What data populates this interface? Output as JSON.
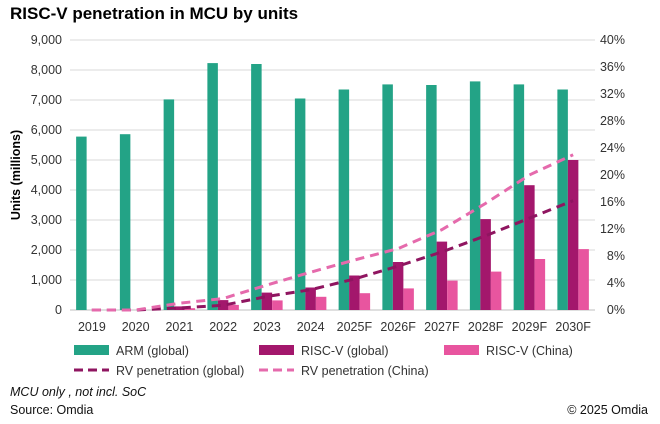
{
  "title": "RISC-V penetration in MCU by units",
  "note": "MCU only , not incl. SoC",
  "source": "Source: Omdia",
  "copyright": "© 2025 Omdia",
  "colors": {
    "arm": "#23a386",
    "riscv_global": "#a3176c",
    "riscv_china": "#e8559f",
    "rv_pen_global": "#8f1560",
    "rv_pen_china": "#e56aac",
    "grid": "#d9d9d9"
  },
  "chart_data": {
    "type": "bar",
    "title": "RISC-V penetration in MCU by units",
    "ylabel": "Units (millions)",
    "categories": [
      "2019",
      "2020",
      "2021",
      "2022",
      "2023",
      "2024",
      "2025F",
      "2026F",
      "2027F",
      "2028F",
      "2029F",
      "2030F"
    ],
    "ylim": [
      0,
      9000
    ],
    "yticks": [
      "0",
      "1,000",
      "2,000",
      "3,000",
      "4,000",
      "5,000",
      "6,000",
      "7,000",
      "8,000",
      "9,000"
    ],
    "y2lim": [
      0,
      40
    ],
    "y2ticks": [
      "0%",
      "4%",
      "8%",
      "12%",
      "16%",
      "20%",
      "24%",
      "28%",
      "32%",
      "36%",
      "40%"
    ],
    "grid": true,
    "legend_position": "bottom",
    "series": [
      {
        "name": "ARM (global)",
        "kind": "bar",
        "axis": "left",
        "values": [
          5780,
          5860,
          7020,
          8230,
          8200,
          7050,
          7350,
          7520,
          7500,
          7620,
          7520,
          7350
        ]
      },
      {
        "name": "RISC-V (global)",
        "kind": "bar",
        "axis": "left",
        "values": [
          0,
          0,
          120,
          330,
          580,
          750,
          1150,
          1600,
          2280,
          3030,
          4160,
          5000
        ]
      },
      {
        "name": "RISC-V (China)",
        "kind": "bar",
        "axis": "left",
        "values": [
          0,
          0,
          60,
          170,
          320,
          440,
          560,
          720,
          980,
          1280,
          1700,
          2030
        ]
      },
      {
        "name": "RV penetration (global)",
        "kind": "line",
        "axis": "right",
        "values": [
          0,
          0,
          0.3,
          0.7,
          2.0,
          3.0,
          4.6,
          6.5,
          8.6,
          11.0,
          13.6,
          16.2
        ]
      },
      {
        "name": "RV penetration (China)",
        "kind": "line",
        "axis": "right",
        "values": [
          0,
          0,
          1.0,
          1.7,
          3.7,
          5.6,
          7.4,
          9.1,
          11.9,
          15.8,
          20.0,
          23.0
        ]
      }
    ]
  }
}
